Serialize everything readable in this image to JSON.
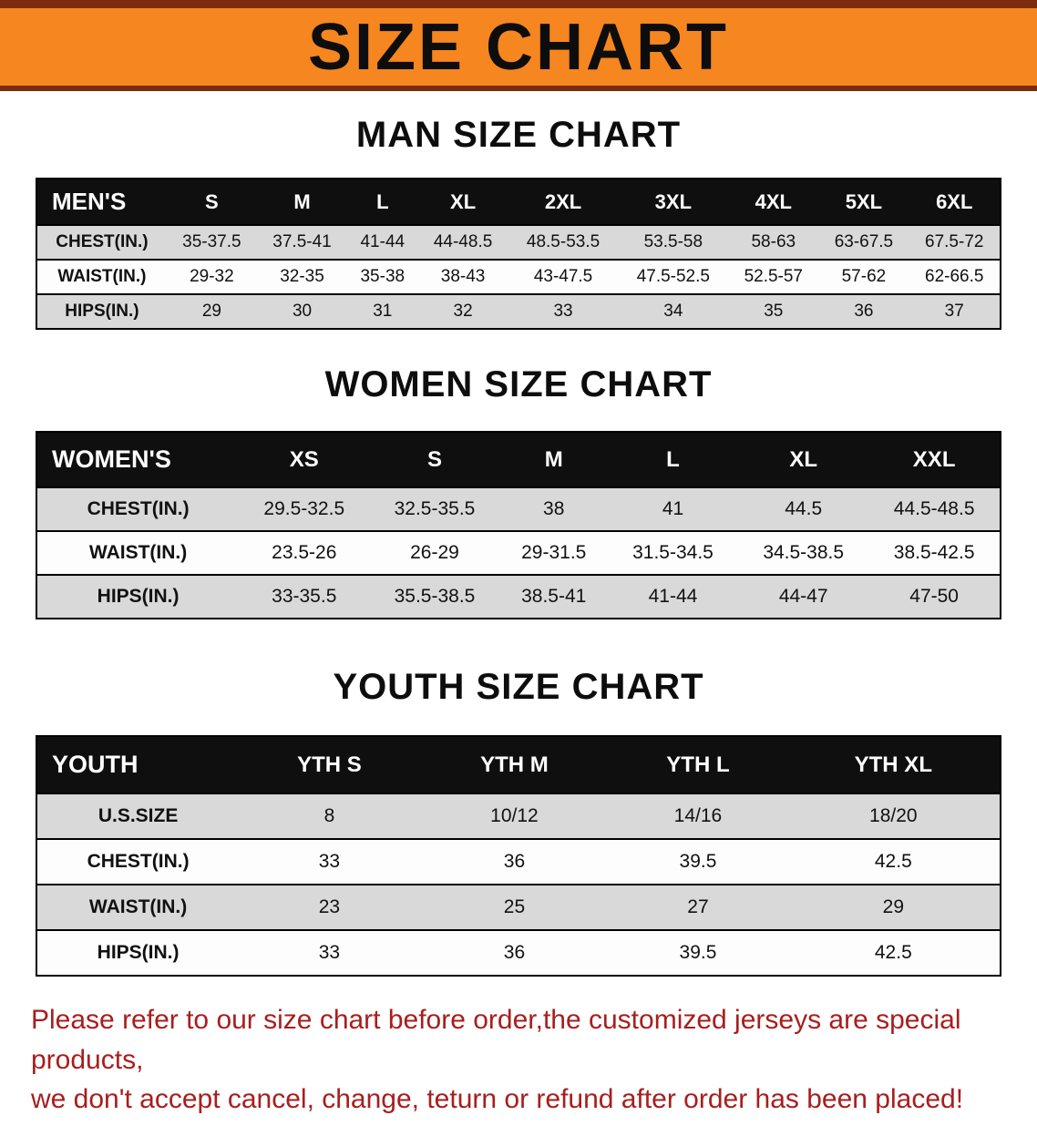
{
  "banner": {
    "title": "SIZE CHART"
  },
  "men": {
    "heading": "MAN SIZE CHART",
    "table": {
      "header": [
        "MEN'S",
        "S",
        "M",
        "L",
        "XL",
        "2XL",
        "3XL",
        "4XL",
        "5XL",
        "6XL"
      ],
      "rows": [
        {
          "label": "CHEST(IN.)",
          "values": [
            "35-37.5",
            "37.5-41",
            "41-44",
            "44-48.5",
            "48.5-53.5",
            "53.5-58",
            "58-63",
            "63-67.5",
            "67.5-72"
          ]
        },
        {
          "label": "WAIST(IN.)",
          "values": [
            "29-32",
            "32-35",
            "35-38",
            "38-43",
            "43-47.5",
            "47.5-52.5",
            "52.5-57",
            "57-62",
            "62-66.5"
          ]
        },
        {
          "label": "HIPS(IN.)",
          "values": [
            "29",
            "30",
            "31",
            "32",
            "33",
            "34",
            "35",
            "36",
            "37"
          ]
        }
      ]
    }
  },
  "women": {
    "heading": "WOMEN SIZE CHART",
    "table": {
      "header": [
        "WOMEN'S",
        "XS",
        "S",
        "M",
        "L",
        "XL",
        "XXL"
      ],
      "rows": [
        {
          "label": "CHEST(IN.)",
          "values": [
            "29.5-32.5",
            "32.5-35.5",
            "38",
            "41",
            "44.5",
            "44.5-48.5"
          ]
        },
        {
          "label": "WAIST(IN.)",
          "values": [
            "23.5-26",
            "26-29",
            "29-31.5",
            "31.5-34.5",
            "34.5-38.5",
            "38.5-42.5"
          ]
        },
        {
          "label": "HIPS(IN.)",
          "values": [
            "33-35.5",
            "35.5-38.5",
            "38.5-41",
            "41-44",
            "44-47",
            "47-50"
          ]
        }
      ]
    }
  },
  "youth": {
    "heading": "YOUTH SIZE CHART",
    "table": {
      "header": [
        "YOUTH",
        "YTH S",
        "YTH M",
        "YTH L",
        "YTH XL"
      ],
      "rows": [
        {
          "label": "U.S.SIZE",
          "values": [
            "8",
            "10/12",
            "14/16",
            "18/20"
          ]
        },
        {
          "label": "CHEST(IN.)",
          "values": [
            "33",
            "36",
            "39.5",
            "42.5"
          ]
        },
        {
          "label": "WAIST(IN.)",
          "values": [
            "23",
            "25",
            "27",
            "29"
          ]
        },
        {
          "label": "HIPS(IN.)",
          "values": [
            "33",
            "36",
            "39.5",
            "42.5"
          ]
        }
      ]
    }
  },
  "footer": {
    "line1": "Please refer to our size chart before order,the customized jerseys are special products,",
    "line2": "we don't accept cancel, change, teturn or refund after order has been placed!"
  },
  "colors": {
    "banner_bg": "#F6861F",
    "banner_border": "#7B2C0E",
    "table_header_bg": "#0F0F0F",
    "row_shade": "#D9D9D9",
    "footer_text": "#A81E1E"
  }
}
